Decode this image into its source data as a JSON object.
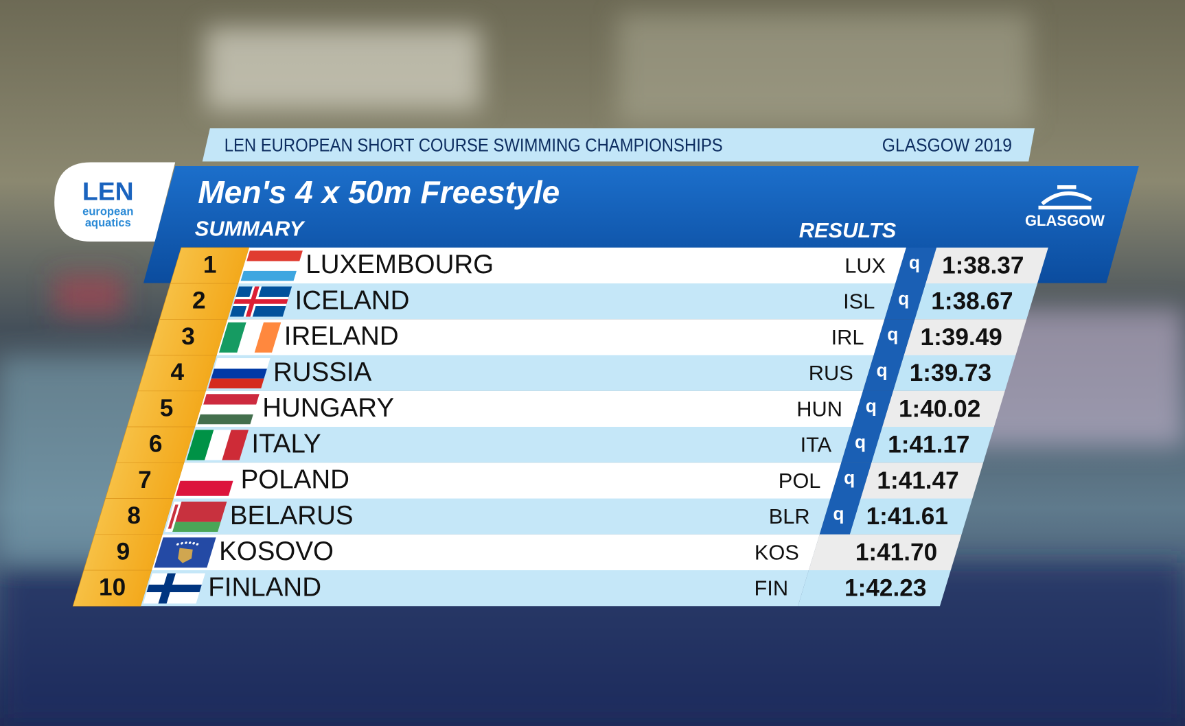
{
  "header": {
    "event": "LEN EUROPEAN SHORT COURSE SWIMMING CHAMPIONSHIPS",
    "venue": "GLASGOW 2019"
  },
  "logo": {
    "mark": "LEN",
    "line1": "european",
    "line2": "aquatics"
  },
  "title": "Men's 4 x 50m Freestyle",
  "subtitle_left": "SUMMARY",
  "subtitle_right": "RESULTS",
  "host_logo": "GLASGOW",
  "table": {
    "rows": [
      {
        "rank": 1,
        "country": "LUXEMBOURG",
        "code": "LUX",
        "qualifier": "q",
        "time": "1:38.37"
      },
      {
        "rank": 2,
        "country": "ICELAND",
        "code": "ISL",
        "qualifier": "q",
        "time": "1:38.67"
      },
      {
        "rank": 3,
        "country": "IRELAND",
        "code": "IRL",
        "qualifier": "q",
        "time": "1:39.49"
      },
      {
        "rank": 4,
        "country": "RUSSIA",
        "code": "RUS",
        "qualifier": "q",
        "time": "1:39.73"
      },
      {
        "rank": 5,
        "country": "HUNGARY",
        "code": "HUN",
        "qualifier": "q",
        "time": "1:40.02"
      },
      {
        "rank": 6,
        "country": "ITALY",
        "code": "ITA",
        "qualifier": "q",
        "time": "1:41.17"
      },
      {
        "rank": 7,
        "country": "POLAND",
        "code": "POL",
        "qualifier": "q",
        "time": "1:41.47"
      },
      {
        "rank": 8,
        "country": "BELARUS",
        "code": "BLR",
        "qualifier": "q",
        "time": "1:41.61"
      },
      {
        "rank": 9,
        "country": "KOSOVO",
        "code": "KOS",
        "time": "1:41.70"
      },
      {
        "rank": 10,
        "country": "FINLAND",
        "code": "FIN",
        "time": "1:42.23"
      }
    ]
  }
}
